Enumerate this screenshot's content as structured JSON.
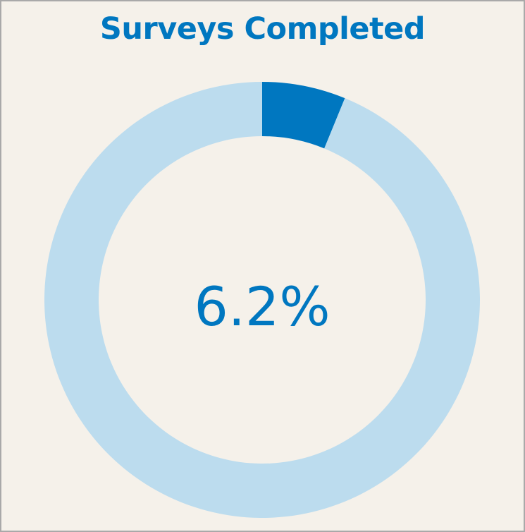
{
  "chart_data": {
    "type": "pie",
    "subtype": "donut-gauge",
    "title": "Surveys Completed",
    "value_percent": 6.2,
    "value_label": "6.2%",
    "range": [
      0,
      100
    ],
    "colors": {
      "filled": "#0077c0",
      "remaining": "#bcdcee",
      "text": "#0077c0",
      "background": "#f5f1ea"
    }
  }
}
